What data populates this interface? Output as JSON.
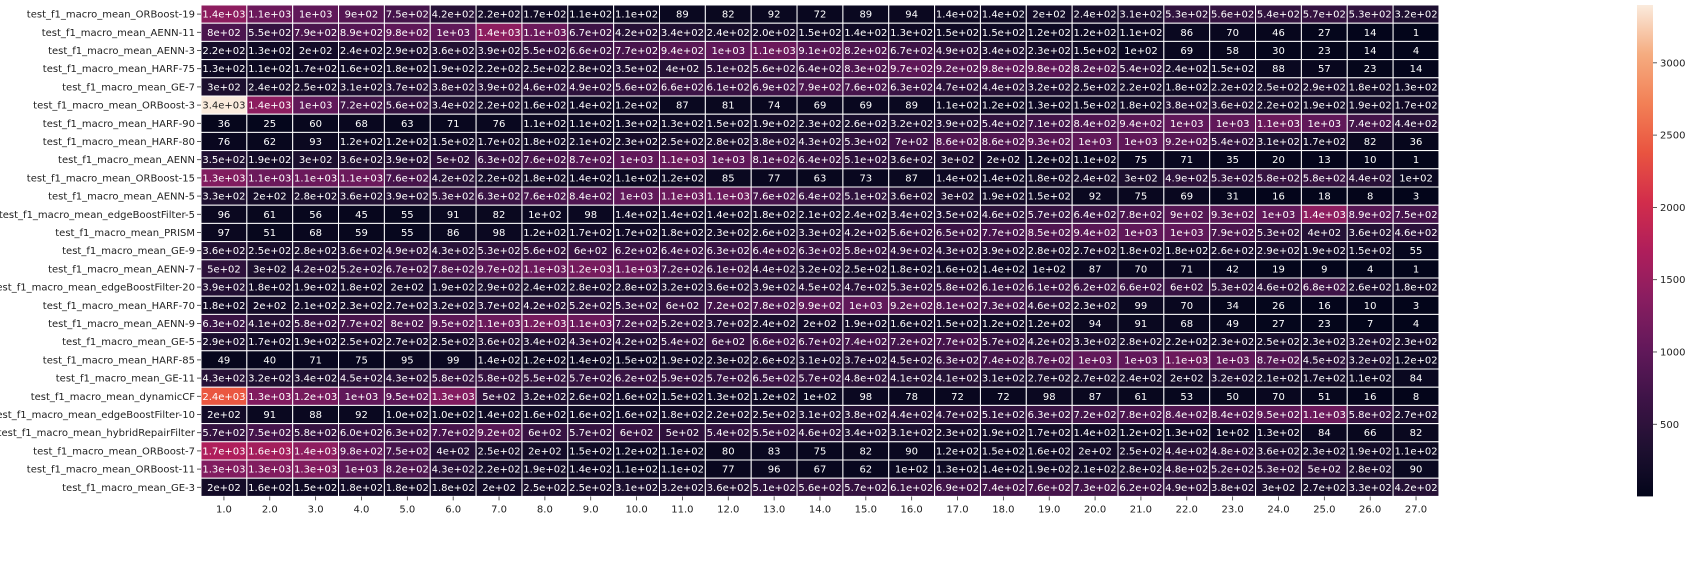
{
  "chart_data": {
    "type": "heatmap",
    "title": "",
    "xlabel": "",
    "ylabel": "",
    "x_categories": [
      "1.0",
      "2.0",
      "3.0",
      "4.0",
      "5.0",
      "6.0",
      "7.0",
      "8.0",
      "9.0",
      "10.0",
      "11.0",
      "12.0",
      "13.0",
      "14.0",
      "15.0",
      "16.0",
      "17.0",
      "18.0",
      "19.0",
      "20.0",
      "21.0",
      "22.0",
      "23.0",
      "24.0",
      "25.0",
      "26.0",
      "27.0"
    ],
    "y_categories": [
      "test_f1_macro_mean_ORBoost-19",
      "test_f1_macro_mean_AENN-11",
      "test_f1_macro_mean_AENN-3",
      "test_f1_macro_mean_HARF-75",
      "test_f1_macro_mean_GE-7",
      "test_f1_macro_mean_ORBoost-3",
      "test_f1_macro_mean_HARF-90",
      "test_f1_macro_mean_HARF-80",
      "test_f1_macro_mean_AENN",
      "test_f1_macro_mean_ORBoost-15",
      "test_f1_macro_mean_AENN-5",
      "test_f1_macro_mean_edgeBoostFilter-5",
      "test_f1_macro_mean_PRISM",
      "test_f1_macro_mean_GE-9",
      "test_f1_macro_mean_AENN-7",
      "test_f1_macro_mean_edgeBoostFilter-20",
      "test_f1_macro_mean_HARF-70",
      "test_f1_macro_mean_AENN-9",
      "test_f1_macro_mean_GE-5",
      "test_f1_macro_mean_HARF-85",
      "test_f1_macro_mean_GE-11",
      "test_f1_macro_mean_dynamicCF",
      "test_f1_macro_mean_edgeBoostFilter-10",
      "test_f1_macro_mean_hybridRepairFilter",
      "test_f1_macro_mean_ORBoost-7",
      "test_f1_macro_mean_ORBoost-11",
      "test_f1_macro_mean_GE-3"
    ],
    "labels": [
      [
        "1.4e+03",
        "1.1e+03",
        "1e+03",
        "9e+02",
        "7.5e+02",
        "4.2e+02",
        "2.2e+02",
        "1.7e+02",
        "1.1e+02",
        "1.1e+02",
        "89",
        "82",
        "92",
        "72",
        "89",
        "94",
        "1.4e+02",
        "1.4e+02",
        "2e+02",
        "2.4e+02",
        "3.1e+02",
        "5.3e+02",
        "5.6e+02",
        "5.4e+02",
        "5.7e+02",
        "5.3e+02",
        "3.2e+02"
      ],
      [
        "8e+02",
        "5.5e+02",
        "7.9e+02",
        "8.9e+02",
        "9.8e+02",
        "1e+03",
        "1.4e+03",
        "1.1e+03",
        "6.7e+02",
        "4.2e+02",
        "3.4e+02",
        "2.4e+02",
        "2.0e+02",
        "1.5e+02",
        "1.4e+02",
        "1.3e+02",
        "1.5e+02",
        "1.5e+02",
        "1.2e+02",
        "1.2e+02",
        "1.1e+02",
        "86",
        "70",
        "46",
        "27",
        "14",
        "1"
      ],
      [
        "2.2e+02",
        "1.3e+02",
        "2e+02",
        "2.4e+02",
        "2.9e+02",
        "3.6e+02",
        "3.9e+02",
        "5.5e+02",
        "6.6e+02",
        "7.7e+02",
        "9.4e+02",
        "1e+03",
        "1.1e+03",
        "9.1e+02",
        "8.2e+02",
        "6.7e+02",
        "4.9e+02",
        "3.4e+02",
        "2.3e+02",
        "1.5e+02",
        "1e+02",
        "69",
        "58",
        "30",
        "23",
        "14",
        "4"
      ],
      [
        "1.3e+02",
        "1.1e+02",
        "1.7e+02",
        "1.6e+02",
        "1.8e+02",
        "1.9e+02",
        "2.2e+02",
        "2.5e+02",
        "2.8e+02",
        "3.5e+02",
        "4e+02",
        "5.1e+02",
        "5.6e+02",
        "6.4e+02",
        "8.3e+02",
        "9.7e+02",
        "9.2e+02",
        "9.8e+02",
        "9.8e+02",
        "8.2e+02",
        "5.4e+02",
        "2.4e+02",
        "1.5e+02",
        "88",
        "57",
        "23",
        "14"
      ],
      [
        "3e+02",
        "2.4e+02",
        "2.5e+02",
        "3.1e+02",
        "3.7e+02",
        "3.8e+02",
        "3.9e+02",
        "4.6e+02",
        "4.9e+02",
        "5.6e+02",
        "6.6e+02",
        "6.1e+02",
        "6.9e+02",
        "7.9e+02",
        "7.6e+02",
        "6.3e+02",
        "4.7e+02",
        "4.4e+02",
        "3.2e+02",
        "2.5e+02",
        "2.2e+02",
        "1.8e+02",
        "2.2e+02",
        "2.5e+02",
        "2.9e+02",
        "1.8e+02",
        "1.3e+02"
      ],
      [
        "3.4e+03",
        "1.4e+03",
        "1e+03",
        "7.2e+02",
        "5.6e+02",
        "3.4e+02",
        "2.2e+02",
        "1.6e+02",
        "1.4e+02",
        "1.2e+02",
        "87",
        "81",
        "74",
        "69",
        "69",
        "89",
        "1.1e+02",
        "1.2e+02",
        "1.3e+02",
        "1.5e+02",
        "1.8e+02",
        "3.8e+02",
        "3.6e+02",
        "2.2e+02",
        "1.9e+02",
        "1.9e+02",
        "1.7e+02"
      ],
      [
        "36",
        "25",
        "60",
        "68",
        "63",
        "71",
        "76",
        "1.1e+02",
        "1.1e+02",
        "1.3e+02",
        "1.3e+02",
        "1.5e+02",
        "1.9e+02",
        "2.3e+02",
        "2.6e+02",
        "3.2e+02",
        "3.9e+02",
        "5.4e+02",
        "7.1e+02",
        "8.4e+02",
        "9.4e+02",
        "1e+03",
        "1e+03",
        "1.1e+03",
        "1e+03",
        "7.4e+02",
        "4.4e+02"
      ],
      [
        "76",
        "62",
        "93",
        "1.2e+02",
        "1.2e+02",
        "1.5e+02",
        "1.7e+02",
        "1.8e+02",
        "2.1e+02",
        "2.3e+02",
        "2.5e+02",
        "2.8e+02",
        "3.8e+02",
        "4.3e+02",
        "5.3e+02",
        "7e+02",
        "8.6e+02",
        "8.6e+02",
        "9.3e+02",
        "1e+03",
        "1e+03",
        "9.2e+02",
        "5.4e+02",
        "3.1e+02",
        "1.7e+02",
        "82",
        "36"
      ],
      [
        "3.5e+02",
        "1.9e+02",
        "3e+02",
        "3.6e+02",
        "3.9e+02",
        "5e+02",
        "6.3e+02",
        "7.6e+02",
        "8.7e+02",
        "1e+03",
        "1.1e+03",
        "1e+03",
        "8.1e+02",
        "6.4e+02",
        "5.1e+02",
        "3.6e+02",
        "3e+02",
        "2e+02",
        "1.2e+02",
        "1.1e+02",
        "75",
        "71",
        "35",
        "20",
        "13",
        "10",
        "1"
      ],
      [
        "1.3e+03",
        "1.1e+03",
        "1.1e+03",
        "1.1e+03",
        "7.6e+02",
        "4.2e+02",
        "2.2e+02",
        "1.8e+02",
        "1.4e+02",
        "1.1e+02",
        "1.2e+02",
        "85",
        "77",
        "63",
        "73",
        "87",
        "1.4e+02",
        "1.4e+02",
        "1.8e+02",
        "2.4e+02",
        "3e+02",
        "4.9e+02",
        "5.3e+02",
        "5.8e+02",
        "5.8e+02",
        "4.4e+02",
        "1e+02"
      ],
      [
        "3.3e+02",
        "2e+02",
        "2.8e+02",
        "3.6e+02",
        "3.9e+02",
        "5.3e+02",
        "6.3e+02",
        "7.6e+02",
        "8.4e+02",
        "1e+03",
        "1.1e+03",
        "1.1e+03",
        "7.6e+02",
        "6.4e+02",
        "5.1e+02",
        "3.6e+02",
        "3e+02",
        "1.9e+02",
        "1.5e+02",
        "92",
        "75",
        "69",
        "31",
        "16",
        "18",
        "8",
        "3"
      ],
      [
        "96",
        "61",
        "56",
        "45",
        "55",
        "91",
        "82",
        "1e+02",
        "98",
        "1.4e+02",
        "1.4e+02",
        "1.4e+02",
        "1.8e+02",
        "2.1e+02",
        "2.4e+02",
        "3.4e+02",
        "3.5e+02",
        "4.6e+02",
        "5.7e+02",
        "6.4e+02",
        "7.8e+02",
        "9e+02",
        "9.3e+02",
        "1e+03",
        "1.4e+03",
        "8.9e+02",
        "7.5e+02"
      ],
      [
        "97",
        "51",
        "68",
        "59",
        "55",
        "86",
        "98",
        "1.2e+02",
        "1.7e+02",
        "1.7e+02",
        "1.8e+02",
        "2.3e+02",
        "2.6e+02",
        "3.3e+02",
        "4.2e+02",
        "5.6e+02",
        "6.5e+02",
        "7.7e+02",
        "8.5e+02",
        "9.4e+02",
        "1e+03",
        "1e+03",
        "7.9e+02",
        "5.3e+02",
        "4e+02",
        "3.6e+02",
        "4.6e+02"
      ],
      [
        "3.6e+02",
        "2.5e+02",
        "2.8e+02",
        "3.6e+02",
        "4.9e+02",
        "4.3e+02",
        "5.3e+02",
        "5.6e+02",
        "6e+02",
        "6.2e+02",
        "6.4e+02",
        "6.3e+02",
        "6.4e+02",
        "6.3e+02",
        "5.8e+02",
        "4.9e+02",
        "4.3e+02",
        "3.9e+02",
        "2.8e+02",
        "2.7e+02",
        "1.8e+02",
        "1.8e+02",
        "2.6e+02",
        "2.9e+02",
        "1.9e+02",
        "1.5e+02",
        "55"
      ],
      [
        "5e+02",
        "3e+02",
        "4.2e+02",
        "5.2e+02",
        "6.7e+02",
        "7.8e+02",
        "9.7e+02",
        "1.1e+03",
        "1.2e+03",
        "1.1e+03",
        "7.2e+02",
        "6.1e+02",
        "4.4e+02",
        "3.2e+02",
        "2.5e+02",
        "1.8e+02",
        "1.6e+02",
        "1.4e+02",
        "1e+02",
        "87",
        "70",
        "71",
        "42",
        "19",
        "9",
        "4",
        "1"
      ],
      [
        "3.9e+02",
        "1.8e+02",
        "1.9e+02",
        "1.8e+02",
        "2e+02",
        "1.9e+02",
        "2.9e+02",
        "2.4e+02",
        "2.8e+02",
        "2.8e+02",
        "3.2e+02",
        "3.6e+02",
        "3.9e+02",
        "4.5e+02",
        "4.7e+02",
        "5.3e+02",
        "5.8e+02",
        "6.1e+02",
        "6.1e+02",
        "6.2e+02",
        "6.6e+02",
        "6e+02",
        "5.3e+02",
        "4.6e+02",
        "6.8e+02",
        "2.6e+02",
        "1.8e+02"
      ],
      [
        "1.8e+02",
        "2e+02",
        "2.1e+02",
        "2.3e+02",
        "2.7e+02",
        "3.2e+02",
        "3.7e+02",
        "4.2e+02",
        "5.2e+02",
        "5.3e+02",
        "6e+02",
        "7.2e+02",
        "7.8e+02",
        "9.9e+02",
        "1e+03",
        "9.2e+02",
        "8.1e+02",
        "7.3e+02",
        "4.6e+02",
        "2.3e+02",
        "99",
        "70",
        "34",
        "26",
        "16",
        "10",
        "3"
      ],
      [
        "6.3e+02",
        "4.1e+02",
        "5.8e+02",
        "7.7e+02",
        "8e+02",
        "9.5e+02",
        "1.1e+03",
        "1.2e+03",
        "1.1e+03",
        "7.2e+02",
        "5.2e+02",
        "3.7e+02",
        "2.4e+02",
        "2e+02",
        "1.9e+02",
        "1.6e+02",
        "1.5e+02",
        "1.2e+02",
        "1.2e+02",
        "94",
        "91",
        "68",
        "49",
        "27",
        "23",
        "7",
        "4"
      ],
      [
        "2.9e+02",
        "1.7e+02",
        "1.9e+02",
        "2.5e+02",
        "2.7e+02",
        "2.5e+02",
        "3.6e+02",
        "3.4e+02",
        "4.3e+02",
        "4.2e+02",
        "5.4e+02",
        "6e+02",
        "6.6e+02",
        "6.7e+02",
        "7.4e+02",
        "7.2e+02",
        "7.7e+02",
        "5.7e+02",
        "4.2e+02",
        "3.3e+02",
        "2.8e+02",
        "2.2e+02",
        "2.3e+02",
        "2.5e+02",
        "2.3e+02",
        "3.2e+02",
        "2.3e+02"
      ],
      [
        "49",
        "40",
        "71",
        "75",
        "95",
        "99",
        "1.4e+02",
        "1.2e+02",
        "1.4e+02",
        "1.5e+02",
        "1.9e+02",
        "2.3e+02",
        "2.6e+02",
        "3.1e+02",
        "3.7e+02",
        "4.5e+02",
        "6.3e+02",
        "7.4e+02",
        "8.7e+02",
        "1e+03",
        "1e+03",
        "1.1e+03",
        "1e+03",
        "8.7e+02",
        "4.5e+02",
        "3.2e+02",
        "1.2e+02"
      ],
      [
        "4.3e+02",
        "3.2e+02",
        "3.4e+02",
        "4.5e+02",
        "4.3e+02",
        "5.8e+02",
        "5.8e+02",
        "5.5e+02",
        "5.7e+02",
        "6.2e+02",
        "5.9e+02",
        "5.7e+02",
        "6.5e+02",
        "5.7e+02",
        "4.8e+02",
        "4.1e+02",
        "4.1e+02",
        "3.1e+02",
        "2.7e+02",
        "2.7e+02",
        "2.4e+02",
        "2e+02",
        "3.2e+02",
        "2.1e+02",
        "1.7e+02",
        "1.1e+02",
        "84"
      ],
      [
        "2.4e+03",
        "1.3e+03",
        "1.2e+03",
        "1e+03",
        "9.5e+02",
        "1.3e+03",
        "5e+02",
        "3.2e+02",
        "2.6e+02",
        "1.6e+02",
        "1.5e+02",
        "1.3e+02",
        "1.2e+02",
        "1e+02",
        "98",
        "78",
        "72",
        "72",
        "98",
        "87",
        "61",
        "53",
        "50",
        "70",
        "51",
        "16",
        "8"
      ],
      [
        "2e+02",
        "91",
        "88",
        "92",
        "1.0e+02",
        "1.0e+02",
        "1.4e+02",
        "1.6e+02",
        "1.6e+02",
        "1.6e+02",
        "1.8e+02",
        "2.2e+02",
        "2.5e+02",
        "3.1e+02",
        "3.8e+02",
        "4.4e+02",
        "4.7e+02",
        "5.1e+02",
        "6.3e+02",
        "7.2e+02",
        "7.8e+02",
        "8.4e+02",
        "8.4e+02",
        "9.5e+02",
        "1.1e+03",
        "5.8e+02",
        "2.7e+02"
      ],
      [
        "5.7e+02",
        "7.5e+02",
        "5.8e+02",
        "6.0e+02",
        "6.3e+02",
        "7.7e+02",
        "9.2e+02",
        "6e+02",
        "5.7e+02",
        "6e+02",
        "5e+02",
        "5.4e+02",
        "5.5e+02",
        "4.6e+02",
        "3.4e+02",
        "3.1e+02",
        "2.3e+02",
        "1.9e+02",
        "1.7e+02",
        "1.4e+02",
        "1.2e+02",
        "1.3e+02",
        "1e+02",
        "1.3e+02",
        "84",
        "66",
        "82"
      ],
      [
        "1.7e+03",
        "1.6e+03",
        "1.4e+03",
        "9.8e+02",
        "7.5e+02",
        "4e+02",
        "2.5e+02",
        "2e+02",
        "1.5e+02",
        "1.2e+02",
        "1.1e+02",
        "80",
        "83",
        "75",
        "82",
        "90",
        "1.2e+02",
        "1.5e+02",
        "1.6e+02",
        "2e+02",
        "2.5e+02",
        "4.4e+02",
        "4.8e+02",
        "3.6e+02",
        "2.3e+02",
        "1.9e+02",
        "1.1e+02"
      ],
      [
        "1.3e+03",
        "1.3e+03",
        "1.3e+03",
        "1e+03",
        "8.2e+02",
        "4.3e+02",
        "2.2e+02",
        "1.9e+02",
        "1.4e+02",
        "1.1e+02",
        "1.1e+02",
        "77",
        "96",
        "67",
        "62",
        "1e+02",
        "1.3e+02",
        "1.4e+02",
        "1.9e+02",
        "2.1e+02",
        "2.8e+02",
        "4.8e+02",
        "5.2e+02",
        "5.3e+02",
        "5e+02",
        "2.8e+02",
        "90"
      ],
      [
        "2e+02",
        "1.6e+02",
        "1.5e+02",
        "1.8e+02",
        "1.8e+02",
        "1.8e+02",
        "2e+02",
        "2.5e+02",
        "2.5e+02",
        "3.1e+02",
        "3.2e+02",
        "3.6e+02",
        "5.1e+02",
        "5.6e+02",
        "5.7e+02",
        "6.1e+02",
        "6.9e+02",
        "7.4e+02",
        "7.6e+02",
        "7.3e+02",
        "6.2e+02",
        "4.9e+02",
        "3.8e+02",
        "3e+02",
        "2.7e+02",
        "3.3e+02",
        "4.2e+02"
      ]
    ],
    "colorbar": {
      "vmin": 1,
      "vmax": 3400,
      "ticks": [
        500,
        1000,
        1500,
        2000,
        2500,
        3000
      ],
      "colormap": "rocket"
    },
    "colors": {
      "cell_border": "#ffffff",
      "text_light": "#ffffff",
      "text_dark": "#222222"
    }
  }
}
